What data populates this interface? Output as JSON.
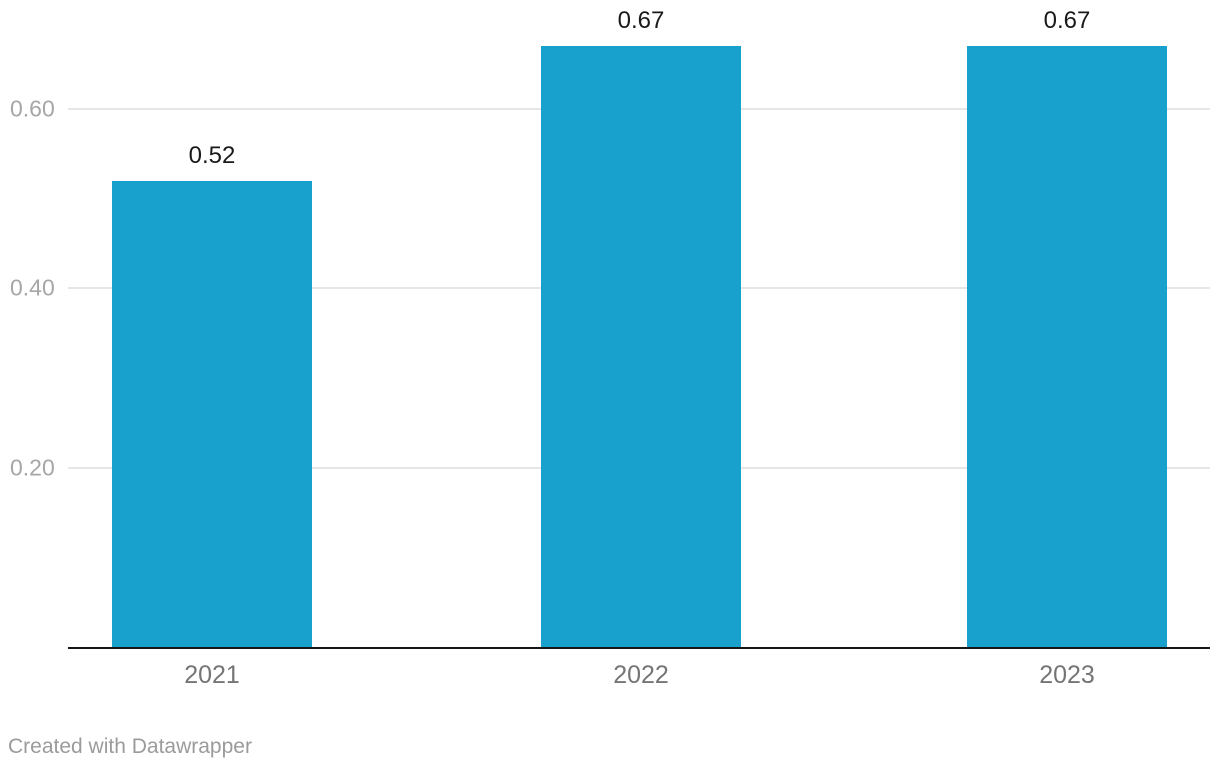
{
  "chart_data": {
    "type": "bar",
    "categories": [
      "2021",
      "2022",
      "2023"
    ],
    "values": [
      0.52,
      0.67,
      0.67
    ],
    "value_labels": [
      "0.52",
      "0.67",
      "0.67"
    ],
    "y_ticks": [
      0.2,
      0.4,
      0.6
    ],
    "y_tick_labels": [
      "0.20",
      "0.40",
      "0.60"
    ],
    "ylim": [
      0,
      0.72
    ],
    "title": "",
    "xlabel": "",
    "ylabel": "",
    "grid": "horizontal-only",
    "legend": "none",
    "bar_color": "#18a1cd"
  },
  "colors": {
    "background": "#ffffff",
    "bar": "#18a1cd",
    "gridline": "#e6e6e6",
    "axis_line": "#161616",
    "y_tick_label": "#a6a6a6",
    "x_tick_label": "#757575",
    "value_label": "#1a1a1a",
    "footer_text": "#9b9b9b"
  },
  "footer": {
    "credit": "Created with Datawrapper"
  }
}
